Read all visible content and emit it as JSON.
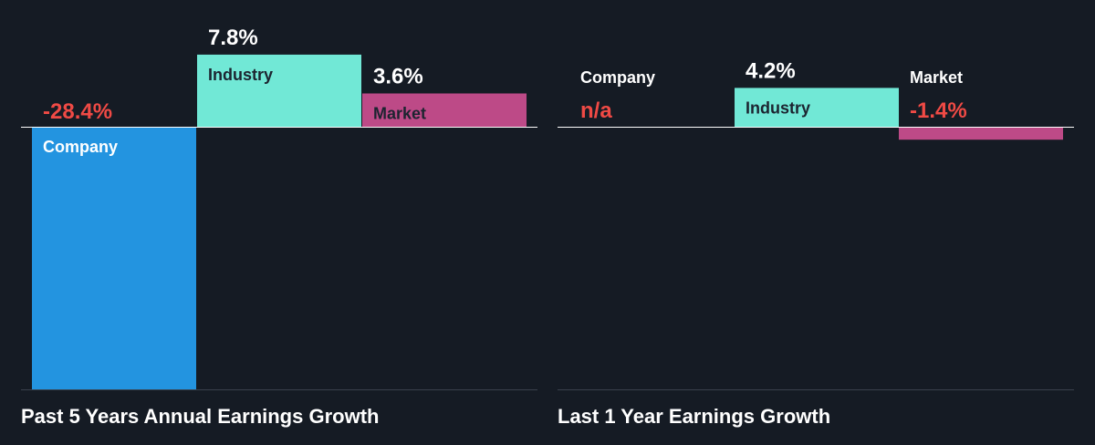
{
  "colors": {
    "background": "#151b24",
    "company": "#2394e0",
    "industry": "#71e8d6",
    "market": "#bd4a87",
    "positive_value": "#ffffff",
    "negative_value": "#f04a45",
    "baseline": "#ffffff",
    "bottom_axis": "#3a414c",
    "label_dark": "#1c2430",
    "label_light": "#ffffff"
  },
  "chart_data": [
    {
      "type": "bar",
      "title": "Past 5 Years Annual Earnings Growth",
      "categories": [
        "Company",
        "Industry",
        "Market"
      ],
      "values": [
        -28.4,
        7.8,
        3.6
      ],
      "value_labels": [
        "-28.4%",
        "7.8%",
        "3.6%"
      ],
      "ylim": [
        -28.4,
        7.8
      ],
      "unit": "%"
    },
    {
      "type": "bar",
      "title": "Last 1 Year Earnings Growth",
      "categories": [
        "Company",
        "Industry",
        "Market"
      ],
      "values": [
        null,
        4.2,
        -1.4
      ],
      "value_labels": [
        "n/a",
        "4.2%",
        "-1.4%"
      ],
      "ylim": [
        -28.4,
        7.8
      ],
      "unit": "%"
    }
  ]
}
